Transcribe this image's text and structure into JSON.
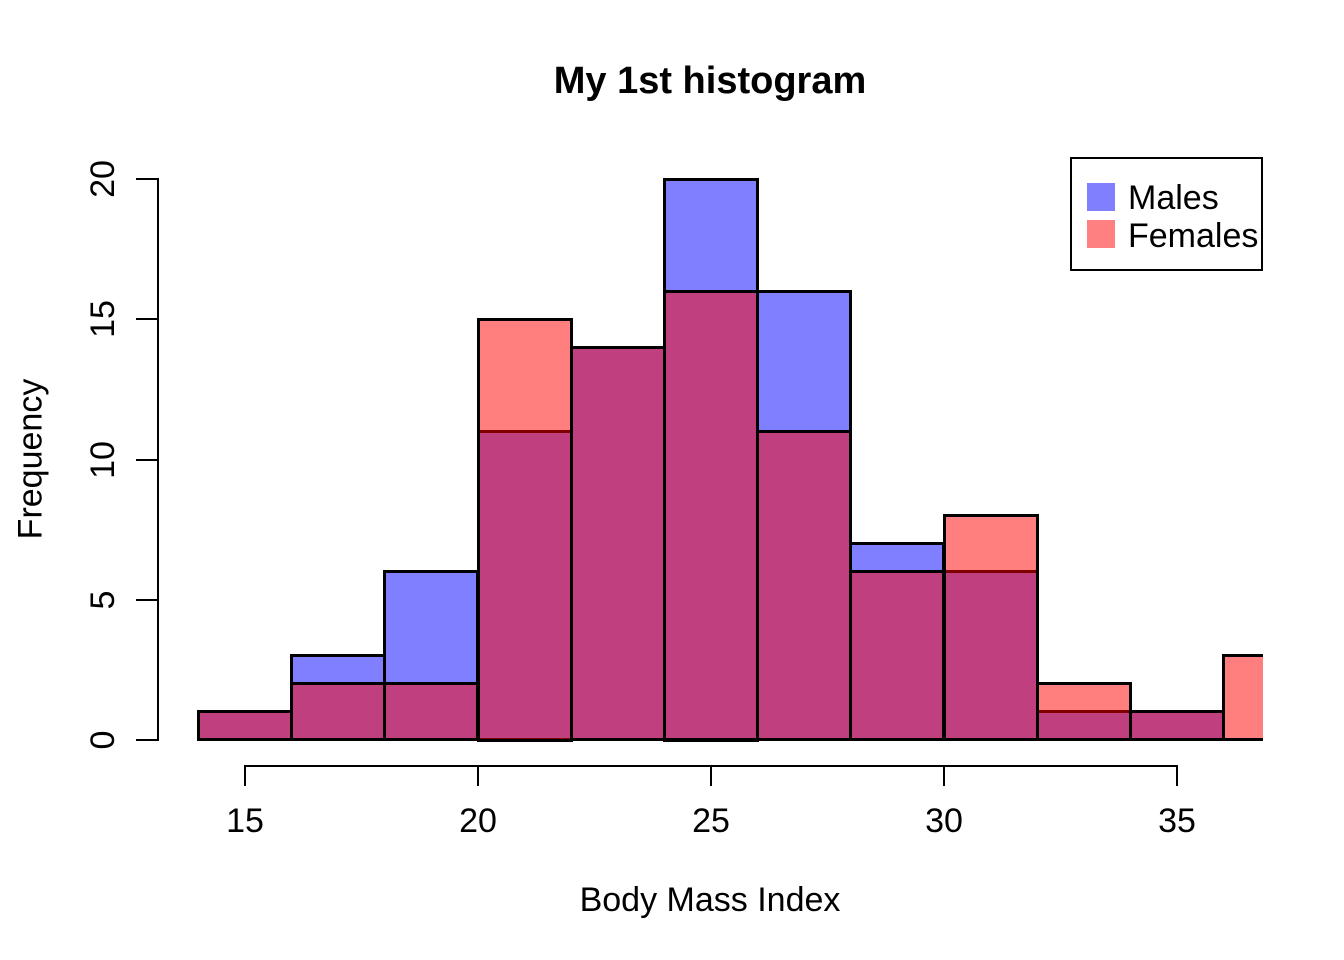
{
  "figure": {
    "background": "#FFFFFF",
    "text_color": "#000000"
  },
  "chart_data": {
    "type": "bar",
    "subtype": "overlaid-histogram",
    "title": "My 1st histogram",
    "xlabel": "Body Mass Index",
    "ylabel": "Frequency",
    "x_ticks": [
      15,
      20,
      25,
      30,
      35
    ],
    "y_ticks": [
      0,
      5,
      10,
      15,
      20
    ],
    "ylim": [
      0,
      20
    ],
    "xlim_visible": [
      13.1,
      36.85
    ],
    "bin_width": 2,
    "bins": [
      [
        14,
        16
      ],
      [
        16,
        18
      ],
      [
        18,
        20
      ],
      [
        20,
        22
      ],
      [
        22,
        24
      ],
      [
        24,
        26
      ],
      [
        26,
        28
      ],
      [
        28,
        30
      ],
      [
        30,
        32
      ],
      [
        32,
        34
      ],
      [
        34,
        36
      ],
      [
        36,
        38
      ]
    ],
    "series": [
      {
        "name": "Males",
        "fill": "rgba(0,0,255,0.5)",
        "solid": "#8080FF",
        "counts": [
          1,
          3,
          6,
          11,
          14,
          20,
          16,
          7,
          6,
          1,
          1,
          0
        ]
      },
      {
        "name": "Females",
        "fill": "rgba(255,0,0,0.5)",
        "solid": "#FF8080",
        "counts": [
          1,
          2,
          2,
          15,
          14,
          16,
          11,
          6,
          8,
          2,
          1,
          3
        ]
      }
    ],
    "overlap_color": "#BF4080",
    "bar_border_color": "#000000",
    "grid": "off",
    "legend": {
      "position": "top-right",
      "entries": [
        {
          "label": "Males",
          "color": "#8080FF"
        },
        {
          "label": "Females",
          "color": "#FF8080"
        }
      ]
    }
  }
}
